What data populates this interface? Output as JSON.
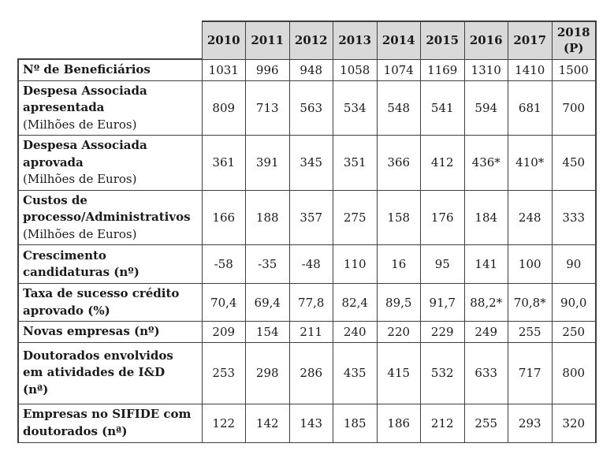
{
  "table": {
    "colors": {
      "header_bg": "#d9d9d9",
      "border": "#3f3f3f",
      "text": "#1a1a1a"
    },
    "year_columns": [
      "2010",
      "2011",
      "2012",
      "2013",
      "2014",
      "2015",
      "2016",
      "2017",
      "2018 (P)"
    ],
    "rows": [
      {
        "label": "Nº de Beneficiários",
        "sublabel": "",
        "values": [
          "1031",
          "996",
          "948",
          "1058",
          "1074",
          "1169",
          "1310",
          "1410",
          "1500"
        ]
      },
      {
        "label": "Despesa Associada\napresentada",
        "sublabel": "(Milhões de Euros)",
        "values": [
          "809",
          "713",
          "563",
          "534",
          "548",
          "541",
          "594",
          "681",
          "700"
        ]
      },
      {
        "label": "Despesa Associada\naprovada",
        "sublabel": "(Milhões de Euros)",
        "values": [
          "361",
          "391",
          "345",
          "351",
          "366",
          "412",
          "436*",
          "410*",
          "450"
        ]
      },
      {
        "label": "Custos de\nprocesso/Administrativos",
        "sublabel": "(Milhões de Euros)",
        "values": [
          "166",
          "188",
          "357",
          "275",
          "158",
          "176",
          "184",
          "248",
          "333"
        ]
      },
      {
        "label": "Crescimento\ncandidaturas (nº)",
        "sublabel": "",
        "values": [
          "-58",
          "-35",
          "-48",
          "110",
          "16",
          "95",
          "141",
          "100",
          "90"
        ]
      },
      {
        "label": "Taxa de sucesso crédito\naprovado (%)",
        "sublabel": "",
        "values": [
          "70,4",
          "69,4",
          "77,8",
          "82,4",
          "89,5",
          "91,7",
          "88,2*",
          "70,8*",
          "90,0"
        ]
      },
      {
        "label": "Novas empresas (nº)",
        "sublabel": "",
        "values": [
          "209",
          "154",
          "211",
          "240",
          "220",
          "229",
          "249",
          "255",
          "250"
        ]
      },
      {
        "label": "Doutorados envolvidos\nem atividades de I&D\n(nª)",
        "sublabel": "",
        "values": [
          "253",
          "298",
          "286",
          "435",
          "415",
          "532",
          "633",
          "717",
          "800"
        ]
      },
      {
        "label": "Empresas no SIFIDE com\ndoutorados (nª)",
        "sublabel": "",
        "values": [
          "122",
          "142",
          "143",
          "185",
          "186",
          "212",
          "255",
          "293",
          "320"
        ]
      }
    ]
  }
}
